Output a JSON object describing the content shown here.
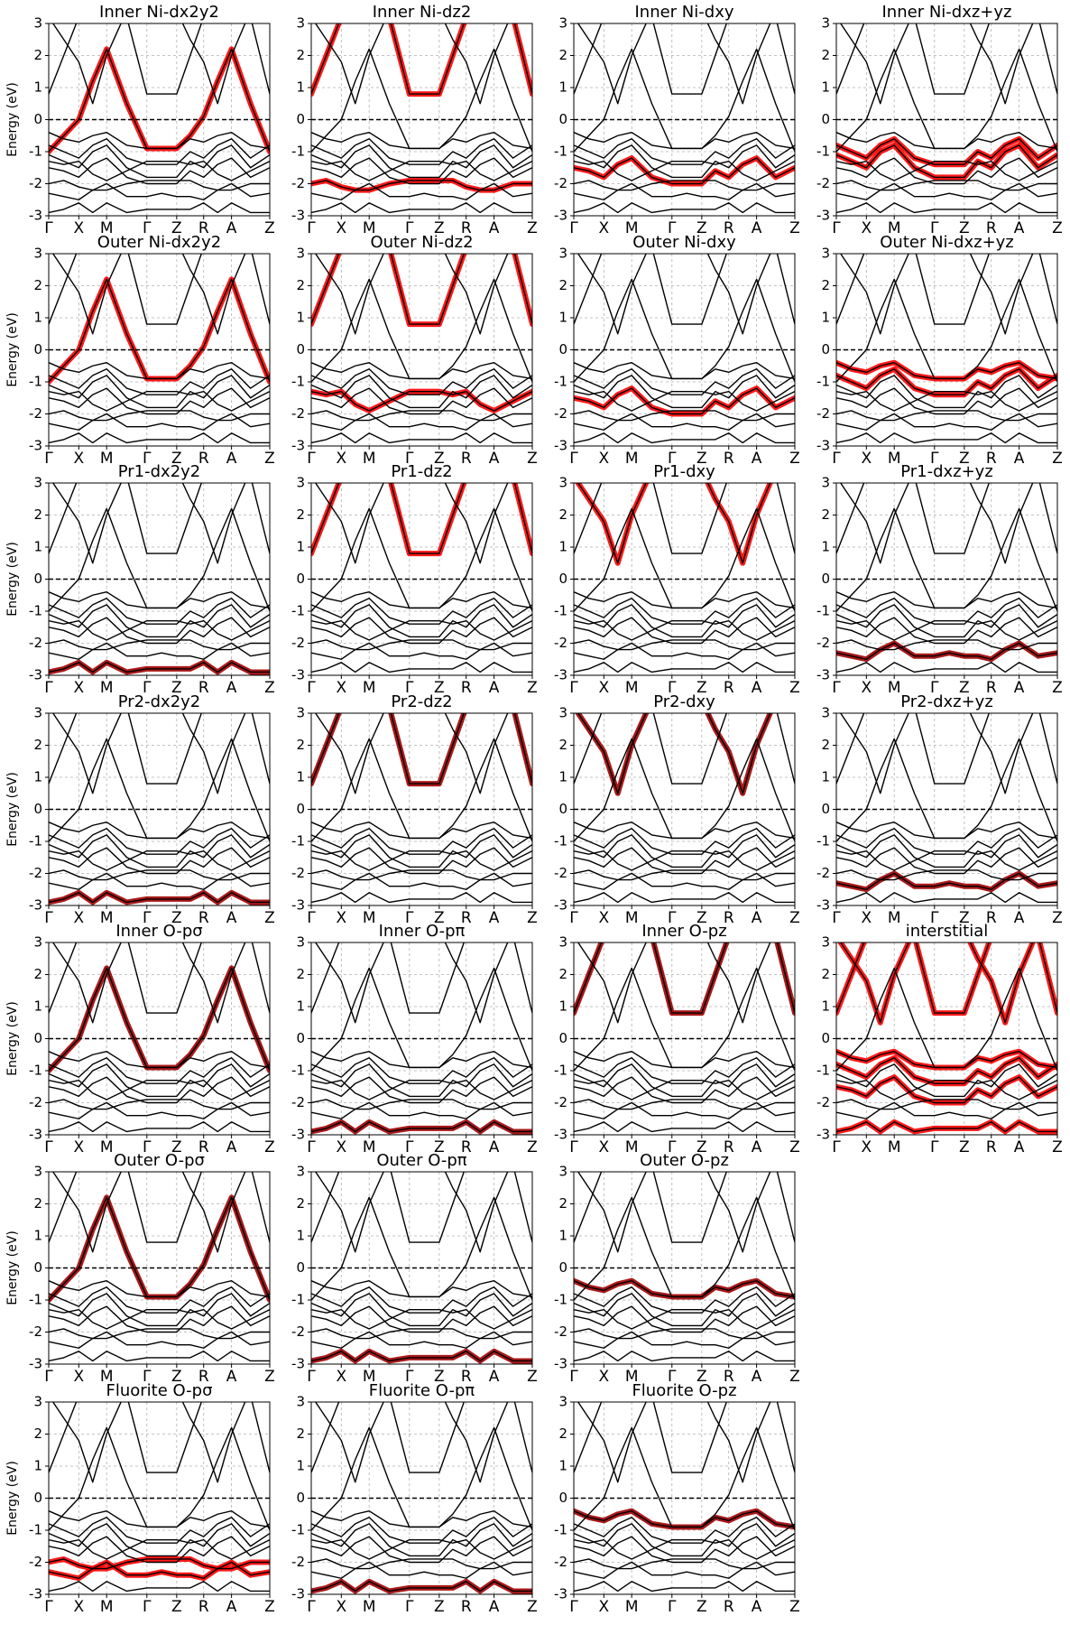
{
  "band_structure": {
    "xlim": [
      0,
      1
    ],
    "ylim": [
      -3,
      3
    ],
    "yticks": [
      -3,
      -2,
      -1,
      0,
      1,
      2,
      3
    ],
    "grid": true,
    "fermi_level": 0,
    "xticks": [
      {
        "value": 0,
        "label": "Γ"
      },
      {
        "value": 0.136,
        "label": "X"
      },
      {
        "value": 0.262,
        "label": "M"
      },
      {
        "value": 0.444,
        "label": "Γ"
      },
      {
        "value": 0.579,
        "label": "Z"
      },
      {
        "value": 0.701,
        "label": "R"
      },
      {
        "value": 0.827,
        "label": "A"
      },
      {
        "value": 1,
        "label": "Z"
      }
    ],
    "x": [
      0,
      0.068,
      0.136,
      0.199,
      0.262,
      0.353,
      0.444,
      0.511,
      0.579,
      0.64,
      0.701,
      0.764,
      0.827,
      0.913,
      1
    ],
    "color": "#000000",
    "bands": [
      [
        -1.0,
        -0.5,
        0.0,
        1.2,
        2.2,
        0.5,
        -0.9,
        -0.9,
        -0.9,
        -0.5,
        0.1,
        1.2,
        2.2,
        0.5,
        -1.0
      ],
      [
        0.8,
        2.0,
        3.2,
        3.2,
        3.2,
        3.2,
        0.8,
        0.8,
        0.8,
        2.0,
        3.2,
        3.2,
        3.2,
        3.2,
        0.8
      ],
      [
        3.2,
        2.5,
        1.8,
        0.5,
        2.0,
        3.4,
        3.4,
        3.4,
        3.4,
        2.5,
        1.8,
        0.5,
        2.0,
        3.4,
        3.4
      ],
      [
        -0.4,
        -0.6,
        -0.7,
        -0.5,
        -0.4,
        -0.8,
        -0.9,
        -0.9,
        -0.9,
        -0.6,
        -0.7,
        -0.5,
        -0.4,
        -0.8,
        -0.9
      ],
      [
        -0.8,
        -1.0,
        -1.2,
        -0.8,
        -0.6,
        -1.2,
        -1.4,
        -1.4,
        -1.4,
        -1.0,
        -1.2,
        -0.8,
        -0.6,
        -1.2,
        -0.8
      ],
      [
        -1.1,
        -1.3,
        -1.5,
        -1.0,
        -0.8,
        -1.5,
        -1.8,
        -1.8,
        -1.8,
        -1.3,
        -1.5,
        -1.0,
        -0.8,
        -1.5,
        -1.1
      ],
      [
        -1.5,
        -1.6,
        -1.8,
        -1.4,
        -1.2,
        -1.8,
        -2.0,
        -2.0,
        -2.0,
        -1.6,
        -1.8,
        -1.4,
        -1.2,
        -1.8,
        -1.5
      ],
      [
        -2.0,
        -1.9,
        -2.1,
        -2.2,
        -2.2,
        -2.0,
        -1.9,
        -1.9,
        -1.9,
        -1.9,
        -2.1,
        -2.2,
        -2.2,
        -2.0,
        -2.0
      ],
      [
        -2.3,
        -2.4,
        -2.5,
        -2.2,
        -2.0,
        -2.4,
        -2.4,
        -2.3,
        -2.4,
        -2.4,
        -2.5,
        -2.2,
        -2.0,
        -2.4,
        -2.3
      ],
      [
        -2.9,
        -2.8,
        -2.6,
        -2.9,
        -2.6,
        -2.9,
        -2.8,
        -2.8,
        -2.8,
        -2.8,
        -2.6,
        -2.9,
        -2.6,
        -2.9,
        -2.9
      ],
      [
        -1.3,
        -1.4,
        -1.3,
        -1.7,
        -1.9,
        -1.6,
        -1.3,
        -1.3,
        -1.3,
        -1.4,
        -1.3,
        -1.7,
        -1.9,
        -1.6,
        -1.3
      ]
    ]
  },
  "chart_data": [
    {
      "type": "line",
      "title": "Inner Ni-dx2y2",
      "ylabel": "Energy (eV)",
      "series": [
        {
          "color": "#ff0000",
          "values": [
            -1.0,
            -0.5,
            0.0,
            1.2,
            2.2,
            0.5,
            -0.9,
            -0.9,
            -0.9,
            -0.5,
            0.1,
            1.2,
            2.2,
            0.5,
            -1.0
          ]
        }
      ]
    },
    {
      "type": "line",
      "title": "Inner Ni-dz2",
      "series": [
        {
          "color": "#ff0000",
          "values": [
            0.8,
            2.0,
            3.2,
            3.2,
            3.2,
            3.2,
            0.8,
            0.8,
            0.8,
            2.0,
            3.2,
            3.2,
            3.2,
            3.2,
            0.8
          ]
        },
        {
          "color": "#ff0000",
          "values": [
            -2.0,
            -1.9,
            -2.1,
            -2.2,
            -2.2,
            -2.0,
            -1.9,
            -1.9,
            -1.9,
            -1.9,
            -2.1,
            -2.2,
            -2.2,
            -2.0,
            -2.0
          ]
        }
      ]
    },
    {
      "type": "line",
      "title": "Inner Ni-dxy",
      "series": [
        {
          "color": "#ff0000",
          "values": [
            -1.5,
            -1.6,
            -1.8,
            -1.4,
            -1.2,
            -1.8,
            -2.0,
            -2.0,
            -2.0,
            -1.6,
            -1.8,
            -1.4,
            -1.2,
            -1.8,
            -1.5
          ]
        }
      ]
    },
    {
      "type": "line",
      "title": "Inner Ni-dxz+yz",
      "series": [
        {
          "color": "#ff0000",
          "values": [
            -0.8,
            -1.0,
            -1.2,
            -0.8,
            -0.6,
            -1.2,
            -1.4,
            -1.4,
            -1.4,
            -1.0,
            -1.2,
            -0.8,
            -0.6,
            -1.2,
            -0.8
          ]
        },
        {
          "color": "#ff0000",
          "values": [
            -1.1,
            -1.3,
            -1.5,
            -1.0,
            -0.8,
            -1.5,
            -1.8,
            -1.8,
            -1.8,
            -1.3,
            -1.5,
            -1.0,
            -0.8,
            -1.5,
            -1.1
          ]
        }
      ]
    },
    {
      "type": "line",
      "title": "Outer Ni-dx2y2",
      "ylabel": "Energy (eV)",
      "series": [
        {
          "color": "#ff0000",
          "values": [
            -1.0,
            -0.5,
            0.0,
            1.2,
            2.2,
            0.5,
            -0.9,
            -0.9,
            -0.9,
            -0.5,
            0.1,
            1.2,
            2.2,
            0.5,
            -1.0
          ]
        }
      ]
    },
    {
      "type": "line",
      "title": "Outer Ni-dz2",
      "series": [
        {
          "color": "#ff0000",
          "values": [
            0.8,
            2.0,
            3.2,
            3.2,
            3.2,
            3.2,
            0.8,
            0.8,
            0.8,
            2.0,
            3.2,
            3.2,
            3.2,
            3.2,
            0.8
          ]
        },
        {
          "color": "#ff0000",
          "values": [
            -1.3,
            -1.4,
            -1.3,
            -1.7,
            -1.9,
            -1.6,
            -1.3,
            -1.3,
            -1.3,
            -1.4,
            -1.3,
            -1.7,
            -1.9,
            -1.6,
            -1.3
          ]
        }
      ]
    },
    {
      "type": "line",
      "title": "Outer Ni-dxy",
      "series": [
        {
          "color": "#ff0000",
          "values": [
            -1.5,
            -1.6,
            -1.8,
            -1.4,
            -1.2,
            -1.8,
            -2.0,
            -2.0,
            -2.0,
            -1.6,
            -1.8,
            -1.4,
            -1.2,
            -1.8,
            -1.5
          ]
        }
      ]
    },
    {
      "type": "line",
      "title": "Outer Ni-dxz+yz",
      "series": [
        {
          "color": "#ff0000",
          "values": [
            -0.4,
            -0.6,
            -0.7,
            -0.5,
            -0.4,
            -0.8,
            -0.9,
            -0.9,
            -0.9,
            -0.6,
            -0.7,
            -0.5,
            -0.4,
            -0.8,
            -0.9
          ]
        },
        {
          "color": "#ff0000",
          "values": [
            -0.8,
            -1.0,
            -1.2,
            -0.8,
            -0.6,
            -1.2,
            -1.4,
            -1.4,
            -1.4,
            -1.0,
            -1.2,
            -0.8,
            -0.6,
            -1.2,
            -0.8
          ]
        }
      ]
    },
    {
      "type": "line",
      "title": "Pr1-dx2y2",
      "ylabel": "Energy (eV)",
      "series": [
        {
          "color": "#a00000",
          "values": [
            -2.9,
            -2.8,
            -2.6,
            -2.9,
            -2.6,
            -2.9,
            -2.8,
            -2.8,
            -2.8,
            -2.8,
            -2.6,
            -2.9,
            -2.6,
            -2.9,
            -2.9
          ]
        }
      ]
    },
    {
      "type": "line",
      "title": "Pr1-dz2",
      "series": [
        {
          "color": "#ff0000",
          "values": [
            0.8,
            2.0,
            3.2,
            3.2,
            3.2,
            3.2,
            0.8,
            0.8,
            0.8,
            2.0,
            3.2,
            3.2,
            3.2,
            3.2,
            0.8
          ]
        }
      ]
    },
    {
      "type": "line",
      "title": "Pr1-dxy",
      "series": [
        {
          "color": "#ff0000",
          "values": [
            3.2,
            2.5,
            1.8,
            0.5,
            2.0,
            3.4,
            3.4,
            3.4,
            3.4,
            2.5,
            1.8,
            0.5,
            2.0,
            3.4,
            3.4
          ]
        }
      ]
    },
    {
      "type": "line",
      "title": "Pr1-dxz+yz",
      "series": [
        {
          "color": "#a00000",
          "values": [
            -2.3,
            -2.4,
            -2.5,
            -2.2,
            -2.0,
            -2.4,
            -2.4,
            -2.3,
            -2.4,
            -2.4,
            -2.5,
            -2.2,
            -2.0,
            -2.4,
            -2.3
          ]
        }
      ]
    },
    {
      "type": "line",
      "title": "Pr2-dx2y2",
      "ylabel": "Energy (eV)",
      "series": [
        {
          "color": "#a00000",
          "values": [
            -2.9,
            -2.8,
            -2.6,
            -2.9,
            -2.6,
            -2.9,
            -2.8,
            -2.8,
            -2.8,
            -2.8,
            -2.6,
            -2.9,
            -2.6,
            -2.9,
            -2.9
          ]
        }
      ]
    },
    {
      "type": "line",
      "title": "Pr2-dz2",
      "series": [
        {
          "color": "#a00000",
          "values": [
            0.8,
            2.0,
            3.2,
            3.2,
            3.2,
            3.2,
            0.8,
            0.8,
            0.8,
            2.0,
            3.2,
            3.2,
            3.2,
            3.2,
            0.8
          ]
        }
      ]
    },
    {
      "type": "line",
      "title": "Pr2-dxy",
      "series": [
        {
          "color": "#a00000",
          "values": [
            3.2,
            2.5,
            1.8,
            0.5,
            2.0,
            3.4,
            3.4,
            3.4,
            3.4,
            2.5,
            1.8,
            0.5,
            2.0,
            3.4,
            3.4
          ]
        }
      ]
    },
    {
      "type": "line",
      "title": "Pr2-dxz+yz",
      "series": [
        {
          "color": "#a00000",
          "values": [
            -2.3,
            -2.4,
            -2.5,
            -2.2,
            -2.0,
            -2.4,
            -2.4,
            -2.3,
            -2.4,
            -2.4,
            -2.5,
            -2.2,
            -2.0,
            -2.4,
            -2.3
          ]
        }
      ]
    },
    {
      "type": "line",
      "title": "Inner O-pσ",
      "ylabel": "Energy (eV)",
      "series": [
        {
          "color": "#a00000",
          "values": [
            -1.0,
            -0.5,
            0.0,
            1.2,
            2.2,
            0.5,
            -0.9,
            -0.9,
            -0.9,
            -0.5,
            0.1,
            1.2,
            2.2,
            0.5,
            -1.0
          ]
        }
      ]
    },
    {
      "type": "line",
      "title": "Inner O-pπ",
      "series": [
        {
          "color": "#a00000",
          "values": [
            -2.9,
            -2.8,
            -2.6,
            -2.9,
            -2.6,
            -2.9,
            -2.8,
            -2.8,
            -2.8,
            -2.8,
            -2.6,
            -2.9,
            -2.6,
            -2.9,
            -2.9
          ]
        }
      ]
    },
    {
      "type": "line",
      "title": "Inner O-pz",
      "series": [
        {
          "color": "#a00000",
          "values": [
            0.8,
            2.0,
            3.2,
            3.2,
            3.2,
            3.2,
            0.8,
            0.8,
            0.8,
            2.0,
            3.2,
            3.2,
            3.2,
            3.2,
            0.8
          ]
        }
      ]
    },
    {
      "type": "line",
      "title": "interstitial",
      "series": [
        {
          "color": "#ff0000",
          "values": [
            0.8,
            2.0,
            3.2,
            3.2,
            3.2,
            3.2,
            0.8,
            0.8,
            0.8,
            2.0,
            3.2,
            3.2,
            3.2,
            3.2,
            0.8
          ]
        },
        {
          "color": "#ff0000",
          "values": [
            3.2,
            2.5,
            1.8,
            0.5,
            2.0,
            3.4,
            3.4,
            3.4,
            3.4,
            2.5,
            1.8,
            0.5,
            2.0,
            3.4,
            3.4
          ]
        },
        {
          "color": "#ff0000",
          "values": [
            -0.4,
            -0.6,
            -0.7,
            -0.5,
            -0.4,
            -0.8,
            -0.9,
            -0.9,
            -0.9,
            -0.6,
            -0.7,
            -0.5,
            -0.4,
            -0.8,
            -0.9
          ]
        },
        {
          "color": "#ff0000",
          "values": [
            -0.8,
            -1.0,
            -1.2,
            -0.8,
            -0.6,
            -1.2,
            -1.4,
            -1.4,
            -1.4,
            -1.0,
            -1.2,
            -0.8,
            -0.6,
            -1.2,
            -0.8
          ]
        },
        {
          "color": "#ff0000",
          "values": [
            -1.5,
            -1.6,
            -1.8,
            -1.4,
            -1.2,
            -1.8,
            -2.0,
            -2.0,
            -2.0,
            -1.6,
            -1.8,
            -1.4,
            -1.2,
            -1.8,
            -1.5
          ]
        },
        {
          "color": "#ff0000",
          "values": [
            -2.9,
            -2.8,
            -2.6,
            -2.9,
            -2.6,
            -2.9,
            -2.8,
            -2.8,
            -2.8,
            -2.8,
            -2.6,
            -2.9,
            -2.6,
            -2.9,
            -2.9
          ]
        }
      ]
    },
    {
      "type": "line",
      "title": "Outer O-pσ",
      "ylabel": "Energy (eV)",
      "series": [
        {
          "color": "#a00000",
          "values": [
            -1.0,
            -0.5,
            0.0,
            1.2,
            2.2,
            0.5,
            -0.9,
            -0.9,
            -0.9,
            -0.5,
            0.1,
            1.2,
            2.2,
            0.5,
            -1.0
          ]
        }
      ]
    },
    {
      "type": "line",
      "title": "Outer O-pπ",
      "series": [
        {
          "color": "#a00000",
          "values": [
            -2.9,
            -2.8,
            -2.6,
            -2.9,
            -2.6,
            -2.9,
            -2.8,
            -2.8,
            -2.8,
            -2.8,
            -2.6,
            -2.9,
            -2.6,
            -2.9,
            -2.9
          ]
        }
      ]
    },
    {
      "type": "line",
      "title": "Outer O-pz",
      "series": [
        {
          "color": "#a00000",
          "values": [
            -0.4,
            -0.6,
            -0.7,
            -0.5,
            -0.4,
            -0.8,
            -0.9,
            -0.9,
            -0.9,
            -0.6,
            -0.7,
            -0.5,
            -0.4,
            -0.8,
            -0.9
          ]
        }
      ]
    },
    {
      "type": "line",
      "title": "Fluorite O-pσ",
      "ylabel": "Energy (eV)",
      "series": [
        {
          "color": "#ff0000",
          "values": [
            -2.0,
            -1.9,
            -2.1,
            -2.2,
            -2.2,
            -2.0,
            -1.9,
            -1.9,
            -1.9,
            -1.9,
            -2.1,
            -2.2,
            -2.2,
            -2.0,
            -2.0
          ]
        },
        {
          "color": "#ff0000",
          "values": [
            -2.3,
            -2.4,
            -2.5,
            -2.2,
            -2.0,
            -2.4,
            -2.4,
            -2.3,
            -2.4,
            -2.4,
            -2.5,
            -2.2,
            -2.0,
            -2.4,
            -2.3
          ]
        }
      ]
    },
    {
      "type": "line",
      "title": "Fluorite O-pπ",
      "series": [
        {
          "color": "#a00000",
          "values": [
            -2.9,
            -2.8,
            -2.6,
            -2.9,
            -2.6,
            -2.9,
            -2.8,
            -2.8,
            -2.8,
            -2.8,
            -2.6,
            -2.9,
            -2.6,
            -2.9,
            -2.9
          ]
        }
      ]
    },
    {
      "type": "line",
      "title": "Fluorite O-pz",
      "series": [
        {
          "color": "#a00000",
          "values": [
            -0.4,
            -0.6,
            -0.7,
            -0.5,
            -0.4,
            -0.8,
            -0.9,
            -0.9,
            -0.9,
            -0.6,
            -0.7,
            -0.5,
            -0.4,
            -0.8,
            -0.9
          ]
        }
      ]
    }
  ]
}
